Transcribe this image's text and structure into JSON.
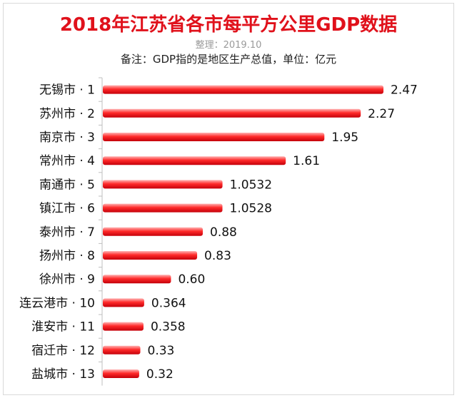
{
  "header": {
    "title": "2018年江苏省各市每平方公里GDP数据",
    "subtitle": "整理：2019.10",
    "note": "备注：GDP指的是地区生产总值，单位：亿元"
  },
  "colors": {
    "bar": "#e0111b",
    "title": "#e0111b",
    "axis": "#bfbfbf"
  },
  "chart_data": {
    "type": "bar",
    "orientation": "horizontal",
    "title": "2018年江苏省各市每平方公里GDP数据",
    "subtitle": "整理：2019.10",
    "annotation": "备注：GDP指的是地区生产总值，单位：亿元",
    "categories": [
      "无锡市 · 1",
      "苏州市 · 2",
      "南京市 · 3",
      "常州市 · 4",
      "南通市 · 5",
      "镇江市 · 6",
      "泰州市 · 7",
      "扬州市 · 8",
      "徐州市 · 9",
      "连云港市 · 10",
      "淮安市 · 11",
      "宿迁市 · 12",
      "盐城市 · 13"
    ],
    "values": [
      2.47,
      2.27,
      1.95,
      1.61,
      1.0532,
      1.0528,
      0.88,
      0.83,
      0.6,
      0.364,
      0.358,
      0.33,
      0.32
    ],
    "value_labels": [
      "2.47",
      "2.27",
      "1.95",
      "1.61",
      "1.0532",
      "1.0528",
      "0.88",
      "0.83",
      "0.60",
      "0.364",
      "0.358",
      "0.33",
      "0.32"
    ],
    "xlim": [
      0,
      2.47
    ],
    "grid": false,
    "legend": "none"
  }
}
